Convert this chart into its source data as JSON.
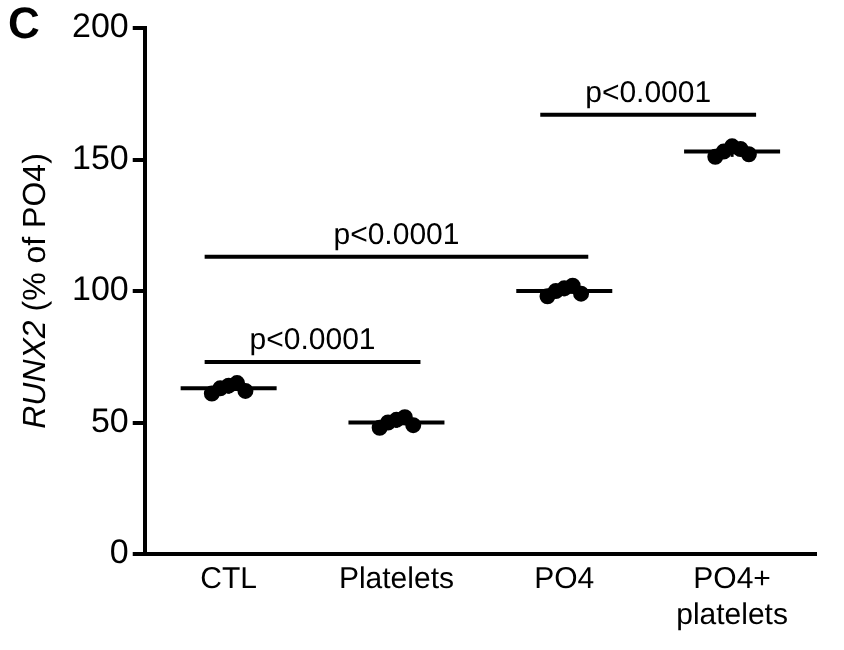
{
  "chart_data": {
    "type": "box",
    "title": "C",
    "ylabel": "RUNX2 (% of PO4)",
    "categories": [
      "CTL",
      "Platelets",
      "PO4",
      "PO4+ platelets"
    ],
    "boxes": [
      {
        "low": 61,
        "q1": 62,
        "median": 63,
        "q3": 64,
        "high": 65
      },
      {
        "low": 48,
        "q1": 49,
        "median": 50,
        "q3": 51,
        "high": 52
      },
      {
        "low": 98,
        "q1": 99,
        "median": 100,
        "q3": 101,
        "high": 102
      },
      {
        "low": 151,
        "q1": 152,
        "median": 153,
        "q3": 154,
        "high": 155
      }
    ],
    "series": [
      {
        "type": "scatter",
        "color": "#000000",
        "x": [
          "CTL",
          "CTL",
          "CTL",
          "CTL",
          "CTL",
          "Platelets",
          "Platelets",
          "Platelets",
          "Platelets",
          "Platelets",
          "PO4",
          "PO4",
          "PO4",
          "PO4",
          "PO4",
          "PO4+ platelets",
          "PO4+ platelets",
          "PO4+ platelets",
          "PO4+ platelets",
          "PO4+ platelets"
        ],
        "values": [
          61,
          63,
          64,
          65,
          62,
          48,
          50,
          51,
          52,
          49,
          98,
          100,
          101,
          102,
          99,
          151,
          153,
          155,
          154,
          152
        ]
      }
    ],
    "ylim": [
      0,
      200
    ],
    "yticks": [
      0,
      50,
      100,
      150,
      200
    ],
    "grid": false,
    "legend": false,
    "marker": "circle",
    "annotations": [
      "p<0.0001",
      "p<0.0001",
      "p<0.0001"
    ]
  }
}
